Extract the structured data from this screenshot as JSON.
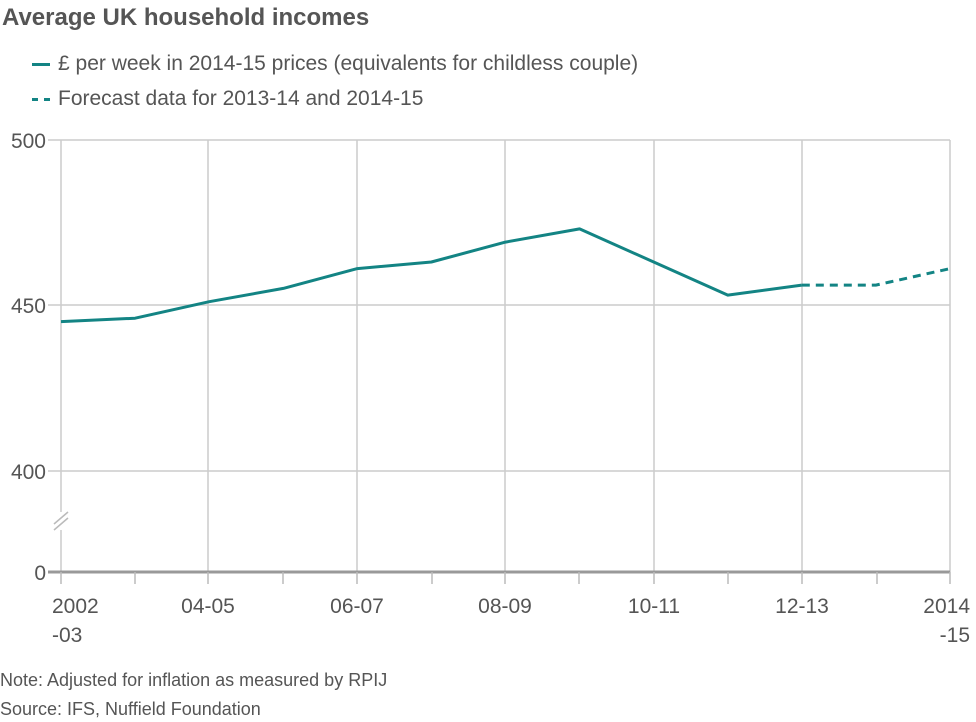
{
  "header": {
    "title": "Average UK household incomes"
  },
  "legend": [
    {
      "label": "£ per week in 2014-15 prices (equivalents for childless couple)",
      "style": "solid",
      "color": "#138484"
    },
    {
      "label": "Forecast data for 2013-14 and 2014-15",
      "style": "dashed",
      "color": "#138484"
    }
  ],
  "axis": {
    "y_ticks": [
      "500",
      "450",
      "400",
      "0"
    ],
    "x_ticks": [
      {
        "line1": "2002",
        "line2": "-03"
      },
      {
        "line1": "04-05",
        "line2": ""
      },
      {
        "line1": "06-07",
        "line2": ""
      },
      {
        "line1": "08-09",
        "line2": ""
      },
      {
        "line1": "10-11",
        "line2": ""
      },
      {
        "line1": "12-13",
        "line2": ""
      },
      {
        "line1": "2014",
        "line2": "-15"
      }
    ]
  },
  "footer": {
    "note": "Note: Adjusted for inflation as measured by RPIJ",
    "source": "Source: IFS, Nuffield Foundation"
  },
  "colors": {
    "series": "#138484",
    "grid": "#cccccc",
    "axis": "#999999",
    "text": "#555555"
  },
  "chart_data": {
    "type": "line",
    "title": "Average UK household incomes",
    "xlabel": "",
    "ylabel": "£ per week in 2014-15 prices",
    "categories": [
      "2002-03",
      "2003-04",
      "2004-05",
      "2005-06",
      "2006-07",
      "2007-08",
      "2008-09",
      "2009-10",
      "2010-11",
      "2011-12",
      "2012-13",
      "2013-14",
      "2014-15"
    ],
    "series": [
      {
        "name": "£ per week in 2014-15 prices (equivalents for childless couple)",
        "style": "solid",
        "values": [
          445,
          446,
          451,
          455,
          461,
          463,
          469,
          473,
          463,
          453,
          456,
          null,
          null
        ]
      },
      {
        "name": "Forecast data for 2013-14 and 2014-15",
        "style": "dashed",
        "values": [
          null,
          null,
          null,
          null,
          null,
          null,
          null,
          null,
          null,
          null,
          456,
          456,
          461
        ]
      }
    ],
    "ylim": [
      0,
      500
    ],
    "y_axis_break": "between 0 and 400",
    "y_ticks": [
      0,
      400,
      450,
      500
    ],
    "x_tick_labels": [
      "2002-03",
      "04-05",
      "06-07",
      "08-09",
      "10-11",
      "12-13",
      "2014-15"
    ],
    "grid": true,
    "legend_position": "top-left",
    "annotations": [
      "Note: Adjusted for inflation as measured by RPIJ",
      "Source: IFS, Nuffield Foundation"
    ]
  }
}
